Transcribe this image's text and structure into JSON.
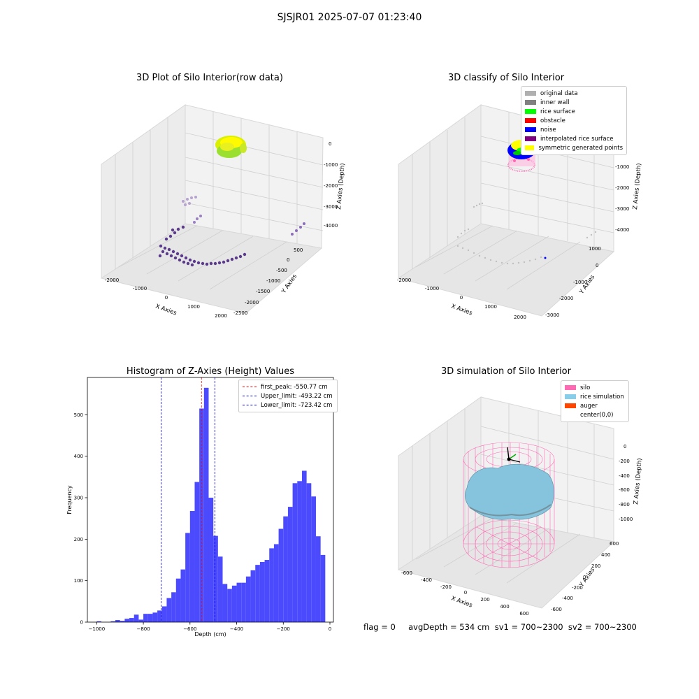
{
  "suptitle": "SJSJR01 2025-07-07 01:23:40",
  "panels": {
    "raw": {
      "title": "3D Plot of Silo Interior(row data)",
      "xlabel": "X Axies",
      "ylabel": "Y Axies",
      "zlabel": "Z Axies (Depth)",
      "xticks": [
        "-2000",
        "-1000",
        "0",
        "1000",
        "2000"
      ],
      "yticks": [
        "500",
        "0",
        "-500",
        "-1000",
        "-1500",
        "-2000",
        "-2500"
      ],
      "zticks": [
        "0",
        "-1000",
        "-2000",
        "-3000",
        "-4000"
      ]
    },
    "classify": {
      "title": "3D classify of Silo Interior",
      "xlabel": "X Axies",
      "ylabel": "Y Axies",
      "zlabel": "Z Axies (Depth)",
      "xticks": [
        "-2000",
        "-1000",
        "0",
        "1000",
        "2000"
      ],
      "yticks": [
        "1000",
        "0",
        "-1000",
        "-2000",
        "-3000"
      ],
      "zticks": [
        "-1000",
        "-2000",
        "-3000",
        "-4000"
      ],
      "legend": [
        {
          "label": "original data",
          "color": "#b0b0b0"
        },
        {
          "label": "inner wall",
          "color": "#808080"
        },
        {
          "label": "rice surface",
          "color": "#00ff00"
        },
        {
          "label": "obstacle",
          "color": "#ff0000"
        },
        {
          "label": "noise",
          "color": "#0000ff"
        },
        {
          "label": "interpolated rice surface",
          "color": "#800080"
        },
        {
          "label": "symmetric generated points",
          "color": "#ffff00"
        }
      ]
    },
    "simulation": {
      "title": "3D simulation of Silo Interior",
      "xlabel": "X Axies",
      "ylabel": "Y Axies",
      "zlabel": "Z Axies (Depth)",
      "xticks": [
        "-600",
        "-400",
        "-200",
        "0",
        "200",
        "400",
        "600"
      ],
      "yticks": [
        "600",
        "400",
        "200",
        "0",
        "-200",
        "-400",
        "-600"
      ],
      "zticks": [
        "0",
        "-200",
        "-400",
        "-600",
        "-800",
        "-1000"
      ],
      "legend": [
        {
          "label": "silo",
          "color": "#ff69b4"
        },
        {
          "label": "rice simulation",
          "color": "#87ceeb"
        },
        {
          "label": "auger",
          "color": "#ff4500"
        },
        {
          "label": "center(0,0)",
          "color": "#ffffff"
        }
      ]
    }
  },
  "status_line": "flag = 0     avgDepth = 534 cm  sv1 = 700~2300  sv2 = 700~2300",
  "chart_data": [
    {
      "type": "bar",
      "title": "Histogram of Z-Axies (Height) Values",
      "xlabel": "Depth (cm)",
      "ylabel": "Frequency",
      "bin_width": 20,
      "bin_starts": [
        -1000,
        -980,
        -960,
        -940,
        -920,
        -900,
        -880,
        -860,
        -840,
        -820,
        -800,
        -780,
        -760,
        -740,
        -720,
        -700,
        -680,
        -660,
        -640,
        -620,
        -600,
        -580,
        -560,
        -540,
        -520,
        -500,
        -480,
        -460,
        -440,
        -420,
        -400,
        -380,
        -360,
        -340,
        -320,
        -300,
        -280,
        -260,
        -240,
        -220,
        -200,
        -180,
        -160,
        -140,
        -120,
        -100,
        -80,
        -60,
        -40
      ],
      "values": [
        2,
        0,
        0,
        2,
        5,
        3,
        8,
        10,
        18,
        6,
        20,
        20,
        23,
        28,
        38,
        58,
        72,
        105,
        127,
        215,
        268,
        338,
        515,
        565,
        300,
        208,
        158,
        92,
        80,
        88,
        95,
        95,
        110,
        125,
        138,
        145,
        150,
        178,
        188,
        225,
        255,
        278,
        335,
        340,
        365,
        335,
        303,
        207,
        162
      ],
      "xlim": [
        -1040,
        15
      ],
      "ylim": [
        0,
        590
      ],
      "xticks": [
        "-1000",
        "-800",
        "-600",
        "-400",
        "-200",
        "0"
      ],
      "yticks": [
        "0",
        "100",
        "200",
        "300",
        "400",
        "500"
      ],
      "bar_color": "#4b4bfd",
      "vlines": [
        {
          "label": "first_peak: -550.77 cm",
          "x": -550.77,
          "color": "#ff0000"
        },
        {
          "label": "Upper_limit: -493.22 cm",
          "x": -493.22,
          "color": "#0000ff"
        },
        {
          "label": "Lower_limit: -723.42 cm",
          "x": -723.42,
          "color": "#0000ff"
        }
      ],
      "legend_position": "top-right"
    }
  ]
}
